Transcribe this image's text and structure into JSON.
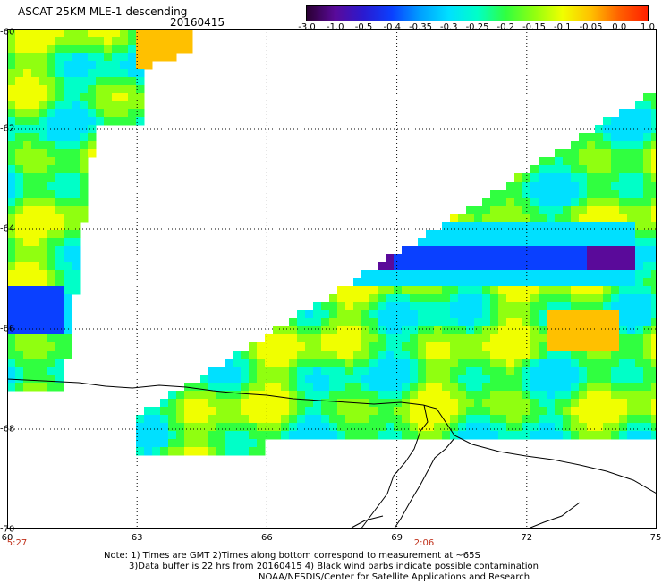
{
  "header": {
    "title": "ASCAT 25KM MLE-1 descending",
    "date": "20160415"
  },
  "legend": {
    "tick_labels": [
      "-3.0",
      "-1.0",
      "-0.5",
      "-0.4",
      "-0.35",
      "-0.3",
      "-0.25",
      "-0.2",
      "-0.15",
      "-0.1",
      "-0.05",
      "0.0",
      "1.0"
    ],
    "colors": [
      "#2a0032",
      "#5a0a9a",
      "#2a1ad0",
      "#0a40ff",
      "#00a0ff",
      "#00e0ff",
      "#00ffc8",
      "#30ff40",
      "#90ff10",
      "#f0ff00",
      "#ffc000",
      "#ff6000",
      "#ff2000"
    ]
  },
  "axes": {
    "x_labels": [
      "60",
      "63",
      "66",
      "69",
      "72",
      "75"
    ],
    "y_labels": [
      "-60",
      "-62",
      "-64",
      "-66",
      "-68",
      "-70"
    ],
    "x_range": [
      60,
      75
    ],
    "y_range": [
      -70,
      -60
    ]
  },
  "times": {
    "left": "5:27",
    "mid": "2:06"
  },
  "note": {
    "line1": "Note: 1) Times are GMT 2)Times along bottom correspond to measurement at ~65S",
    "line2": "3)Data buffer is 22 hrs from 20160415 4) Black wind barbs indicate possible contamination",
    "line3": "NOAA/NESDIS/Center for Satellite Applications and Research"
  }
}
